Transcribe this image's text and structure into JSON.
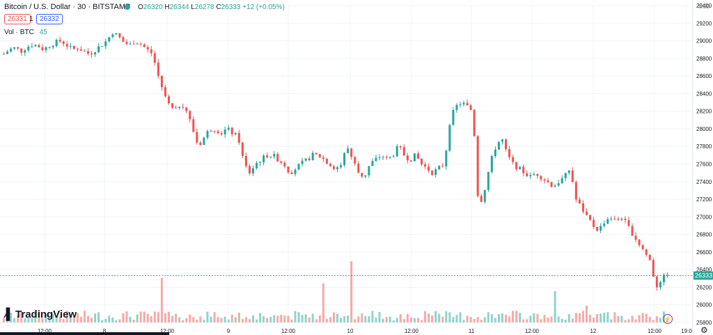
{
  "header": {
    "title": "Bitcoin / U.S. Dollar · 30 · BITSTAMP",
    "ohlc": {
      "o_label": "O",
      "o": "26320",
      "h_label": "H",
      "h": "26344",
      "l_label": "L",
      "l": "26278",
      "c_label": "C",
      "c": "26333",
      "change": "+12 (+0.05%)"
    },
    "sell_price": "26331",
    "spread": "1",
    "buy_price": "26332",
    "volume_label": "Vol · BTC",
    "volume_value": "45"
  },
  "currency": "USD",
  "logo_text": "TradingView",
  "colors": {
    "up": "#26a69a",
    "down": "#ef5350",
    "up_vol": "#8fd3ca",
    "down_vol": "#f7a9a7",
    "grid": "#f0f3fa",
    "price_line": "#26a69a"
  },
  "icons": {
    "settings": "gear-icon",
    "alert": "lightning-icon",
    "status": "dot-icon"
  },
  "chart_data": {
    "type": "candlestick",
    "y_axis": {
      "min": 25800,
      "max": 29400,
      "ticks": [
        29400,
        29200,
        29000,
        28800,
        28600,
        28400,
        28200,
        28000,
        27800,
        27600,
        27400,
        27200,
        27000,
        26800,
        26600,
        26400,
        26200,
        26000,
        25800
      ],
      "position": "right"
    },
    "x_axis": {
      "ticks": [
        "12:00",
        "8",
        "12:00",
        "9",
        "12:00",
        "10",
        "12:00",
        "11",
        "12:00",
        "12",
        "12:00",
        "19:0"
      ]
    },
    "last_price": 26333,
    "grid": true,
    "close_path": [
      28850,
      28900,
      28920,
      28880,
      28930,
      28960,
      28940,
      28900,
      28950,
      28980,
      29000,
      28950,
      28900,
      28920,
      28880,
      28850,
      28900,
      28950,
      29000,
      29100,
      29050,
      28980,
      28950,
      29000,
      28960,
      28900,
      28850,
      28600,
      28400,
      28250,
      28200,
      28300,
      28200,
      28000,
      27800,
      27900,
      28000,
      28000,
      27950,
      28000,
      27950,
      27900,
      27600,
      27500,
      27600,
      27650,
      27700,
      27700,
      27650,
      27600,
      27500,
      27550,
      27600,
      27650,
      27700,
      27700,
      27650,
      27600,
      27550,
      27600,
      27800,
      27650,
      27500,
      27450,
      27600,
      27650,
      27700,
      27650,
      27700,
      27800,
      27700,
      27650,
      27700,
      27600,
      27550,
      27500,
      27550,
      27600,
      28100,
      28250,
      28300,
      28250,
      28200,
      27100,
      27300,
      27600,
      27800,
      27900,
      27700,
      27600,
      27550,
      27500,
      27450,
      27500,
      27450,
      27400,
      27350,
      27400,
      27450,
      27550,
      27200,
      27100,
      27000,
      26900,
      26850,
      26950,
      27000,
      26950,
      27000,
      26900,
      26800,
      26700,
      26600,
      26500,
      26200,
      26300,
      26333
    ],
    "volume_spikes": [
      {
        "index": 45,
        "value": 40
      },
      {
        "index": 91,
        "value": 35
      },
      {
        "index": 99,
        "value": 55
      },
      {
        "index": 157,
        "value": 28
      },
      {
        "index": 166,
        "value": 15
      }
    ]
  }
}
